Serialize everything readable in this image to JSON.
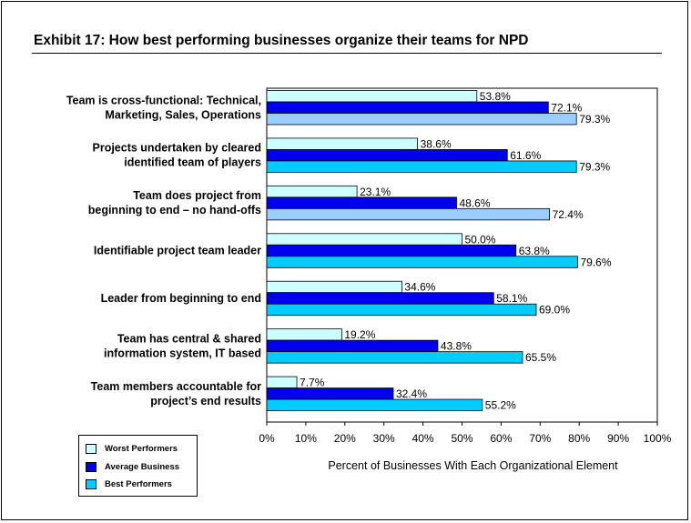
{
  "title": "Exhibit 17: How best performing businesses organize their teams for NPD",
  "chart_data": {
    "type": "bar",
    "orientation": "horizontal",
    "categories": [
      [
        "Team is cross-functional: Technical,",
        "Marketing, Sales, Operations"
      ],
      [
        "Projects undertaken by cleared",
        "identified team of players"
      ],
      [
        "Team does project from",
        "beginning to end – no hand-offs"
      ],
      [
        "Identifiable project team leader"
      ],
      [
        "Leader from beginning to end"
      ],
      [
        "Team has central & shared",
        "information system, IT based"
      ],
      [
        "Team members accountable for",
        "project’s end results"
      ]
    ],
    "series": [
      {
        "name": "Worst Performers",
        "color": "#ccffff",
        "values": [
          53.8,
          38.6,
          23.1,
          50.0,
          34.6,
          19.2,
          7.7
        ],
        "labels": [
          "53.8%",
          "38.6%",
          "23.1%",
          "50.0%",
          "34.6%",
          "19.2%",
          "7.7%"
        ]
      },
      {
        "name": "Average Business",
        "color": "#0000ee",
        "values": [
          72.1,
          61.6,
          48.6,
          63.8,
          58.1,
          43.8,
          32.4
        ],
        "labels": [
          "72.1%",
          "61.6%",
          "48.6%",
          "63.8%",
          "58.1%",
          "43.8%",
          "32.4%"
        ]
      },
      {
        "name": "Best Performers",
        "color": "#00ccff",
        "values": [
          79.3,
          79.3,
          72.4,
          79.6,
          69.0,
          65.5,
          55.2
        ],
        "labels": [
          "79.3%",
          "79.3%",
          "72.4%",
          "79.6%",
          "69.0%",
          "65.5%",
          "55.2%"
        ]
      }
    ],
    "best_bar_colors": [
      "#99ccff",
      "#00ccff",
      "#99ccff",
      "#00ccff",
      "#00ccff",
      "#00ccff",
      "#00ccff"
    ],
    "xlim": [
      0,
      100
    ],
    "xticks": [
      "0%",
      "10%",
      "20%",
      "30%",
      "40%",
      "50%",
      "60%",
      "70%",
      "80%",
      "90%",
      "100%"
    ],
    "xlabel": "Percent of Businesses With Each Organizational Element",
    "ylabel": "",
    "grid": false,
    "legend_position": "bottom-left"
  }
}
